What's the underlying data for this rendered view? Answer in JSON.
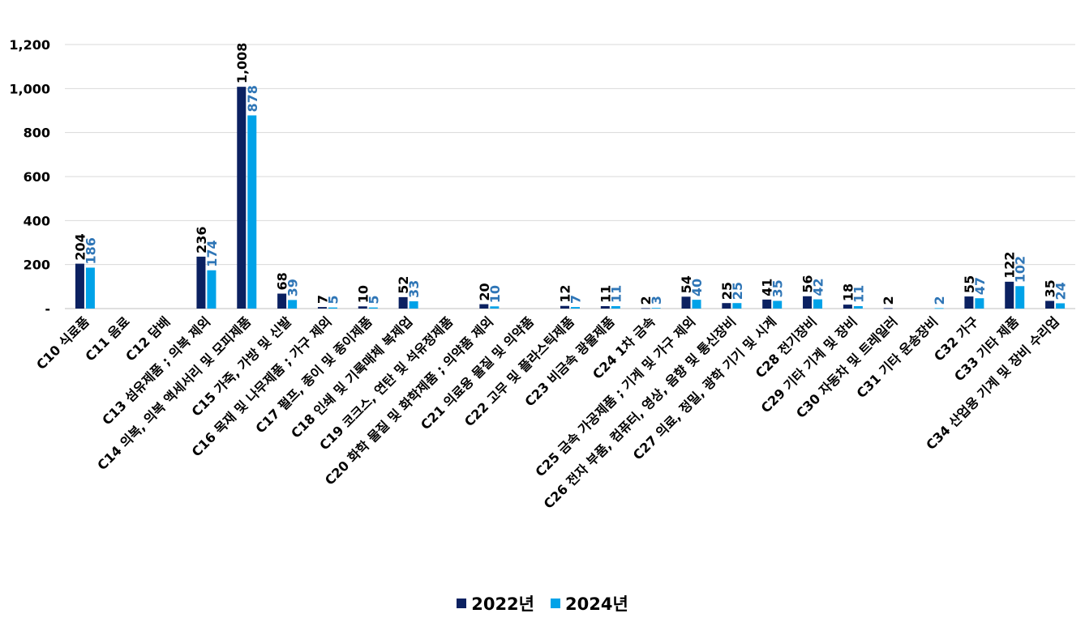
{
  "chart_data": {
    "type": "bar",
    "title": "",
    "xlabel": "",
    "ylabel": "",
    "ylim": [
      0,
      1200
    ],
    "yticks": [
      {
        "value": 0,
        "label": "-"
      },
      {
        "value": 200,
        "label": "200"
      },
      {
        "value": 400,
        "label": "400"
      },
      {
        "value": 600,
        "label": "600"
      },
      {
        "value": 800,
        "label": "800"
      },
      {
        "value": 1000,
        "label": "1,000"
      },
      {
        "value": 1200,
        "label": "1,200"
      }
    ],
    "grid": true,
    "legend_position": "bottom",
    "categories": [
      "C10 식료품",
      "C11 음료",
      "C12 담배",
      "C13 섬유제품 ; 의복 제외",
      "C14 의복, 의복 액세서리 및 모피제품",
      "C15 가죽, 가방 및 신발",
      "C16 목재 및 나무제품 ; 가구 제외",
      "C17 펄프, 종이 및 종이제품",
      "C18 인쇄 및 기록매체 복제업",
      "C19 코크스, 연탄 및 석유정제품",
      "C20 화학 물질 및 화학제품 ; 의약품 제외",
      "C21 의료용 물질 및 의약품",
      "C22 고무 및 플라스틱제품",
      "C23 비금속 광물제품",
      "C24 1차 금속",
      "C25 금속 가공제품 ; 기계 및 가구 제외",
      "C26 전자 부품, 컴퓨터, 영상, 음향 및 통신장비",
      "C27 의료, 정밀, 광학 기기 및 시계",
      "C28 전기장비",
      "C29 기타 기계 및 장비",
      "C30 자동차 및 트레일러",
      "C31 기타 운송장비",
      "C32 가구",
      "C33 기타 제품",
      "C34 산업용 기계 및 장비 수리업"
    ],
    "series": [
      {
        "name": "2022년",
        "color": "#0B2161",
        "label_color": "#000000",
        "values": [
          204,
          null,
          null,
          236,
          1008,
          68,
          7,
          10,
          52,
          null,
          20,
          null,
          12,
          11,
          2,
          54,
          25,
          41,
          56,
          18,
          2,
          null,
          55,
          122,
          35
        ],
        "labels": [
          "204",
          "",
          "",
          "236",
          "1,008",
          "68",
          "7",
          "10",
          "52",
          "",
          "20",
          "",
          "12",
          "11",
          "2",
          "54",
          "25",
          "41",
          "56",
          "18",
          "2",
          "",
          "55",
          "122",
          "35"
        ]
      },
      {
        "name": "2024년",
        "color": "#00A2E8",
        "label_color": "#2E75B6",
        "values": [
          186,
          null,
          null,
          174,
          878,
          39,
          5,
          5,
          33,
          null,
          10,
          null,
          7,
          11,
          3,
          40,
          25,
          35,
          42,
          11,
          null,
          2,
          47,
          102,
          24
        ],
        "labels": [
          "186",
          "",
          "",
          "174",
          "878",
          "39",
          "5",
          "5",
          "33",
          "",
          "10",
          "",
          "7",
          "11",
          "3",
          "40",
          "25",
          "35",
          "42",
          "11",
          "",
          "2",
          "47",
          "102",
          "24"
        ]
      }
    ]
  }
}
